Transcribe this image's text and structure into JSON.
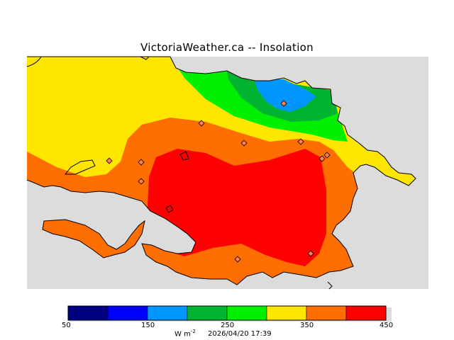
{
  "title": "VictoriaWeather.ca -- Insolation",
  "colors": {
    "sea": "#dcdcdc",
    "land_outline": "#000000",
    "station_fill": "#ff7f50"
  },
  "legend": {
    "ticks": [
      "50",
      "150",
      "250",
      "350",
      "450"
    ],
    "bands": [
      {
        "from": 50,
        "to": 100,
        "color": "#000080"
      },
      {
        "from": 100,
        "to": 150,
        "color": "#0000ff"
      },
      {
        "from": 150,
        "to": 200,
        "color": "#0096ff"
      },
      {
        "from": 200,
        "to": 250,
        "color": "#00b432"
      },
      {
        "from": 250,
        "to": 300,
        "color": "#00f000"
      },
      {
        "from": 300,
        "to": 350,
        "color": "#ffe600"
      },
      {
        "from": 350,
        "to": 400,
        "color": "#ff6e00"
      },
      {
        "from": 400,
        "to": 450,
        "color": "#ff0000"
      }
    ],
    "units_main": "W m",
    "units_exp": "-2",
    "timestamp": "2026/04/20 17:39"
  }
}
